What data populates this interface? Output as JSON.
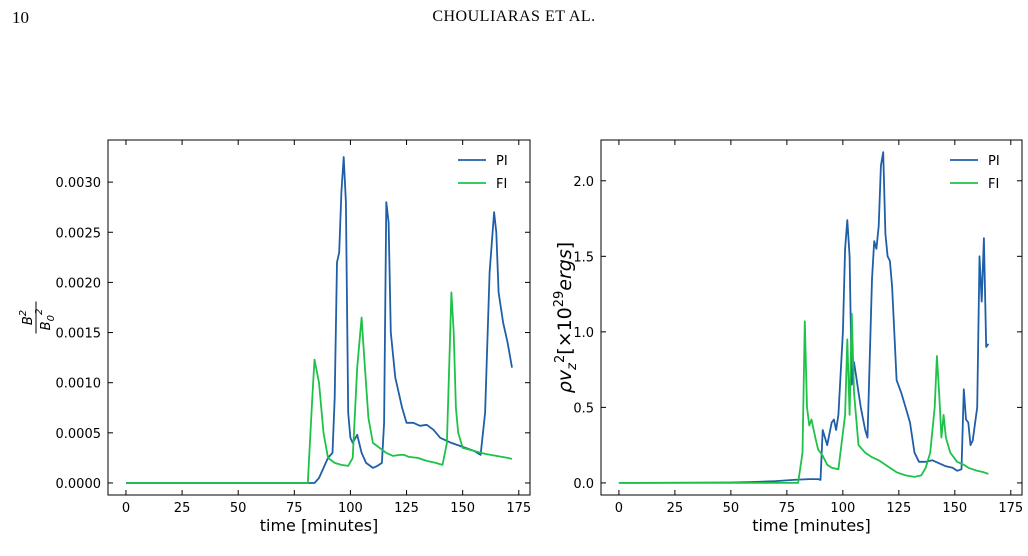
{
  "header": {
    "page_number": "10",
    "running_head": "CHOULIARAS ET AL."
  },
  "colors": {
    "PI": "#1f5fa8",
    "FI": "#1ec248"
  },
  "chart_data": [
    {
      "type": "line",
      "xlabel": "time [minutes]",
      "ylabel_parts": {
        "numerator": "B",
        "numerator_sup": "2",
        "denominator": "B",
        "denominator_sub": "0",
        "denominator_sup": "2"
      },
      "xlim": [
        -8,
        180
      ],
      "ylim": [
        -0.00012,
        0.00342
      ],
      "xticks": [
        0,
        25,
        50,
        75,
        100,
        125,
        150,
        175
      ],
      "yticks": [
        0.0,
        0.0005,
        0.001,
        0.0015,
        0.002,
        0.0025,
        0.003
      ],
      "ytick_labels": [
        "0.0000",
        "0.0005",
        "0.0010",
        "0.0015",
        "0.0020",
        "0.0025",
        "0.0030"
      ],
      "legend": {
        "position": "top-right",
        "entries": [
          "PI",
          "FI"
        ]
      },
      "series": [
        {
          "name": "PI",
          "color": "#1f5fa8",
          "points": [
            [
              0,
              0
            ],
            [
              84,
              0
            ],
            [
              86,
              5e-05
            ],
            [
              90,
              0.00025
            ],
            [
              92,
              0.0003
            ],
            [
              93,
              0.00085
            ],
            [
              94,
              0.0022
            ],
            [
              95,
              0.0023
            ],
            [
              96,
              0.0029
            ],
            [
              97,
              0.00325
            ],
            [
              98,
              0.0028
            ],
            [
              99,
              0.0007
            ],
            [
              100,
              0.00045
            ],
            [
              101,
              0.0004
            ],
            [
              103,
              0.00048
            ],
            [
              105,
              0.0003
            ],
            [
              107,
              0.0002
            ],
            [
              110,
              0.00015
            ],
            [
              112,
              0.00017
            ],
            [
              114,
              0.0002
            ],
            [
              115,
              0.0006
            ],
            [
              116,
              0.0028
            ],
            [
              117,
              0.0026
            ],
            [
              118,
              0.0015
            ],
            [
              120,
              0.00105
            ],
            [
              121,
              0.00095
            ],
            [
              123,
              0.00075
            ],
            [
              125,
              0.0006
            ],
            [
              128,
              0.0006
            ],
            [
              131,
              0.00057
            ],
            [
              134,
              0.00058
            ],
            [
              137,
              0.00053
            ],
            [
              140,
              0.00045
            ],
            [
              145,
              0.0004
            ],
            [
              150,
              0.00036
            ],
            [
              155,
              0.00032
            ],
            [
              158,
              0.00028
            ],
            [
              160,
              0.0007
            ],
            [
              162,
              0.0021
            ],
            [
              164,
              0.0027
            ],
            [
              165,
              0.0025
            ],
            [
              166,
              0.0019
            ],
            [
              168,
              0.0016
            ],
            [
              170,
              0.0014
            ],
            [
              172,
              0.00115
            ]
          ]
        },
        {
          "name": "FI",
          "color": "#1ec248",
          "points": [
            [
              0,
              0
            ],
            [
              81,
              0
            ],
            [
              83,
              0.00085
            ],
            [
              84,
              0.00123
            ],
            [
              86,
              0.001
            ],
            [
              88,
              0.0005
            ],
            [
              90,
              0.00025
            ],
            [
              93,
              0.0002
            ],
            [
              96,
              0.00018
            ],
            [
              99,
              0.00017
            ],
            [
              101,
              0.00025
            ],
            [
              103,
              0.00115
            ],
            [
              105,
              0.00165
            ],
            [
              106,
              0.0013
            ],
            [
              108,
              0.00065
            ],
            [
              110,
              0.0004
            ],
            [
              113,
              0.00035
            ],
            [
              116,
              0.0003
            ],
            [
              119,
              0.00027
            ],
            [
              122,
              0.00028
            ],
            [
              124,
              0.00028
            ],
            [
              126,
              0.00026
            ],
            [
              130,
              0.00025
            ],
            [
              134,
              0.00022
            ],
            [
              138,
              0.0002
            ],
            [
              141,
              0.00018
            ],
            [
              143,
              0.0004
            ],
            [
              145,
              0.0019
            ],
            [
              146,
              0.0015
            ],
            [
              147,
              0.00075
            ],
            [
              148,
              0.0005
            ],
            [
              150,
              0.00035
            ],
            [
              155,
              0.00032
            ],
            [
              160,
              0.00029
            ],
            [
              165,
              0.00027
            ],
            [
              170,
              0.00025
            ],
            [
              172,
              0.00024
            ]
          ]
        }
      ]
    },
    {
      "type": "line",
      "xlabel": "time [minutes]",
      "ylabel": "ρv_z^2[×10^29 ergs]",
      "xlim": [
        -8,
        180
      ],
      "ylim": [
        -0.08,
        2.27
      ],
      "xticks": [
        0,
        25,
        50,
        75,
        100,
        125,
        150,
        175
      ],
      "yticks": [
        0.0,
        0.5,
        1.0,
        1.5,
        2.0
      ],
      "ytick_labels": [
        "0.0",
        "0.5",
        "1.0",
        "1.5",
        "2.0"
      ],
      "legend": {
        "position": "top-right",
        "entries": [
          "PI",
          "FI"
        ]
      },
      "series": [
        {
          "name": "PI",
          "color": "#1f5fa8",
          "points": [
            [
              0,
              0
            ],
            [
              50,
              0.003
            ],
            [
              60,
              0.006
            ],
            [
              70,
              0.012
            ],
            [
              78,
              0.02
            ],
            [
              85,
              0.025
            ],
            [
              89,
              0.025
            ],
            [
              90,
              0.02
            ],
            [
              91,
              0.35
            ],
            [
              93,
              0.25
            ],
            [
              95,
              0.4
            ],
            [
              96,
              0.42
            ],
            [
              97,
              0.35
            ],
            [
              98,
              0.45
            ],
            [
              100,
              1.0
            ],
            [
              101,
              1.55
            ],
            [
              102,
              1.74
            ],
            [
              103,
              1.5
            ],
            [
              104,
              0.65
            ],
            [
              105,
              0.8
            ],
            [
              106,
              0.7
            ],
            [
              107,
              0.6
            ],
            [
              108,
              0.5
            ],
            [
              110,
              0.35
            ],
            [
              111,
              0.3
            ],
            [
              113,
              1.35
            ],
            [
              114,
              1.6
            ],
            [
              115,
              1.55
            ],
            [
              116,
              1.7
            ],
            [
              117,
              2.1
            ],
            [
              118,
              2.19
            ],
            [
              119,
              1.65
            ],
            [
              120,
              1.5
            ],
            [
              121,
              1.47
            ],
            [
              122,
              1.3
            ],
            [
              124,
              0.68
            ],
            [
              126,
              0.6
            ],
            [
              128,
              0.5
            ],
            [
              130,
              0.4
            ],
            [
              132,
              0.2
            ],
            [
              134,
              0.14
            ],
            [
              137,
              0.14
            ],
            [
              140,
              0.15
            ],
            [
              143,
              0.13
            ],
            [
              146,
              0.11
            ],
            [
              149,
              0.1
            ],
            [
              151,
              0.08
            ],
            [
              153,
              0.09
            ],
            [
              154,
              0.62
            ],
            [
              155,
              0.42
            ],
            [
              156,
              0.4
            ],
            [
              157,
              0.25
            ],
            [
              158,
              0.28
            ],
            [
              160,
              0.5
            ],
            [
              161,
              1.5
            ],
            [
              162,
              1.2
            ],
            [
              163,
              1.62
            ],
            [
              164,
              0.9
            ],
            [
              165,
              0.92
            ]
          ]
        },
        {
          "name": "FI",
          "color": "#1ec248",
          "points": [
            [
              0,
              0
            ],
            [
              80,
              0
            ],
            [
              82,
              0.2
            ],
            [
              83,
              1.07
            ],
            [
              84,
              0.5
            ],
            [
              85,
              0.38
            ],
            [
              86,
              0.42
            ],
            [
              87,
              0.35
            ],
            [
              88,
              0.28
            ],
            [
              89,
              0.22
            ],
            [
              90,
              0.2
            ],
            [
              91,
              0.18
            ],
            [
              93,
              0.12
            ],
            [
              95,
              0.1
            ],
            [
              98,
              0.09
            ],
            [
              101,
              0.45
            ],
            [
              102,
              0.95
            ],
            [
              103,
              0.45
            ],
            [
              104,
              1.12
            ],
            [
              105,
              0.6
            ],
            [
              106,
              0.42
            ],
            [
              107,
              0.25
            ],
            [
              110,
              0.2
            ],
            [
              113,
              0.17
            ],
            [
              116,
              0.15
            ],
            [
              118,
              0.13
            ],
            [
              121,
              0.1
            ],
            [
              124,
              0.07
            ],
            [
              128,
              0.05
            ],
            [
              132,
              0.04
            ],
            [
              135,
              0.05
            ],
            [
              137,
              0.1
            ],
            [
              139,
              0.2
            ],
            [
              141,
              0.5
            ],
            [
              142,
              0.84
            ],
            [
              143,
              0.6
            ],
            [
              144,
              0.3
            ],
            [
              145,
              0.45
            ],
            [
              146,
              0.3
            ],
            [
              148,
              0.2
            ],
            [
              151,
              0.14
            ],
            [
              154,
              0.12
            ],
            [
              156,
              0.1
            ],
            [
              158,
              0.09
            ],
            [
              160,
              0.08
            ],
            [
              163,
              0.07
            ],
            [
              165,
              0.06
            ]
          ]
        }
      ]
    }
  ]
}
